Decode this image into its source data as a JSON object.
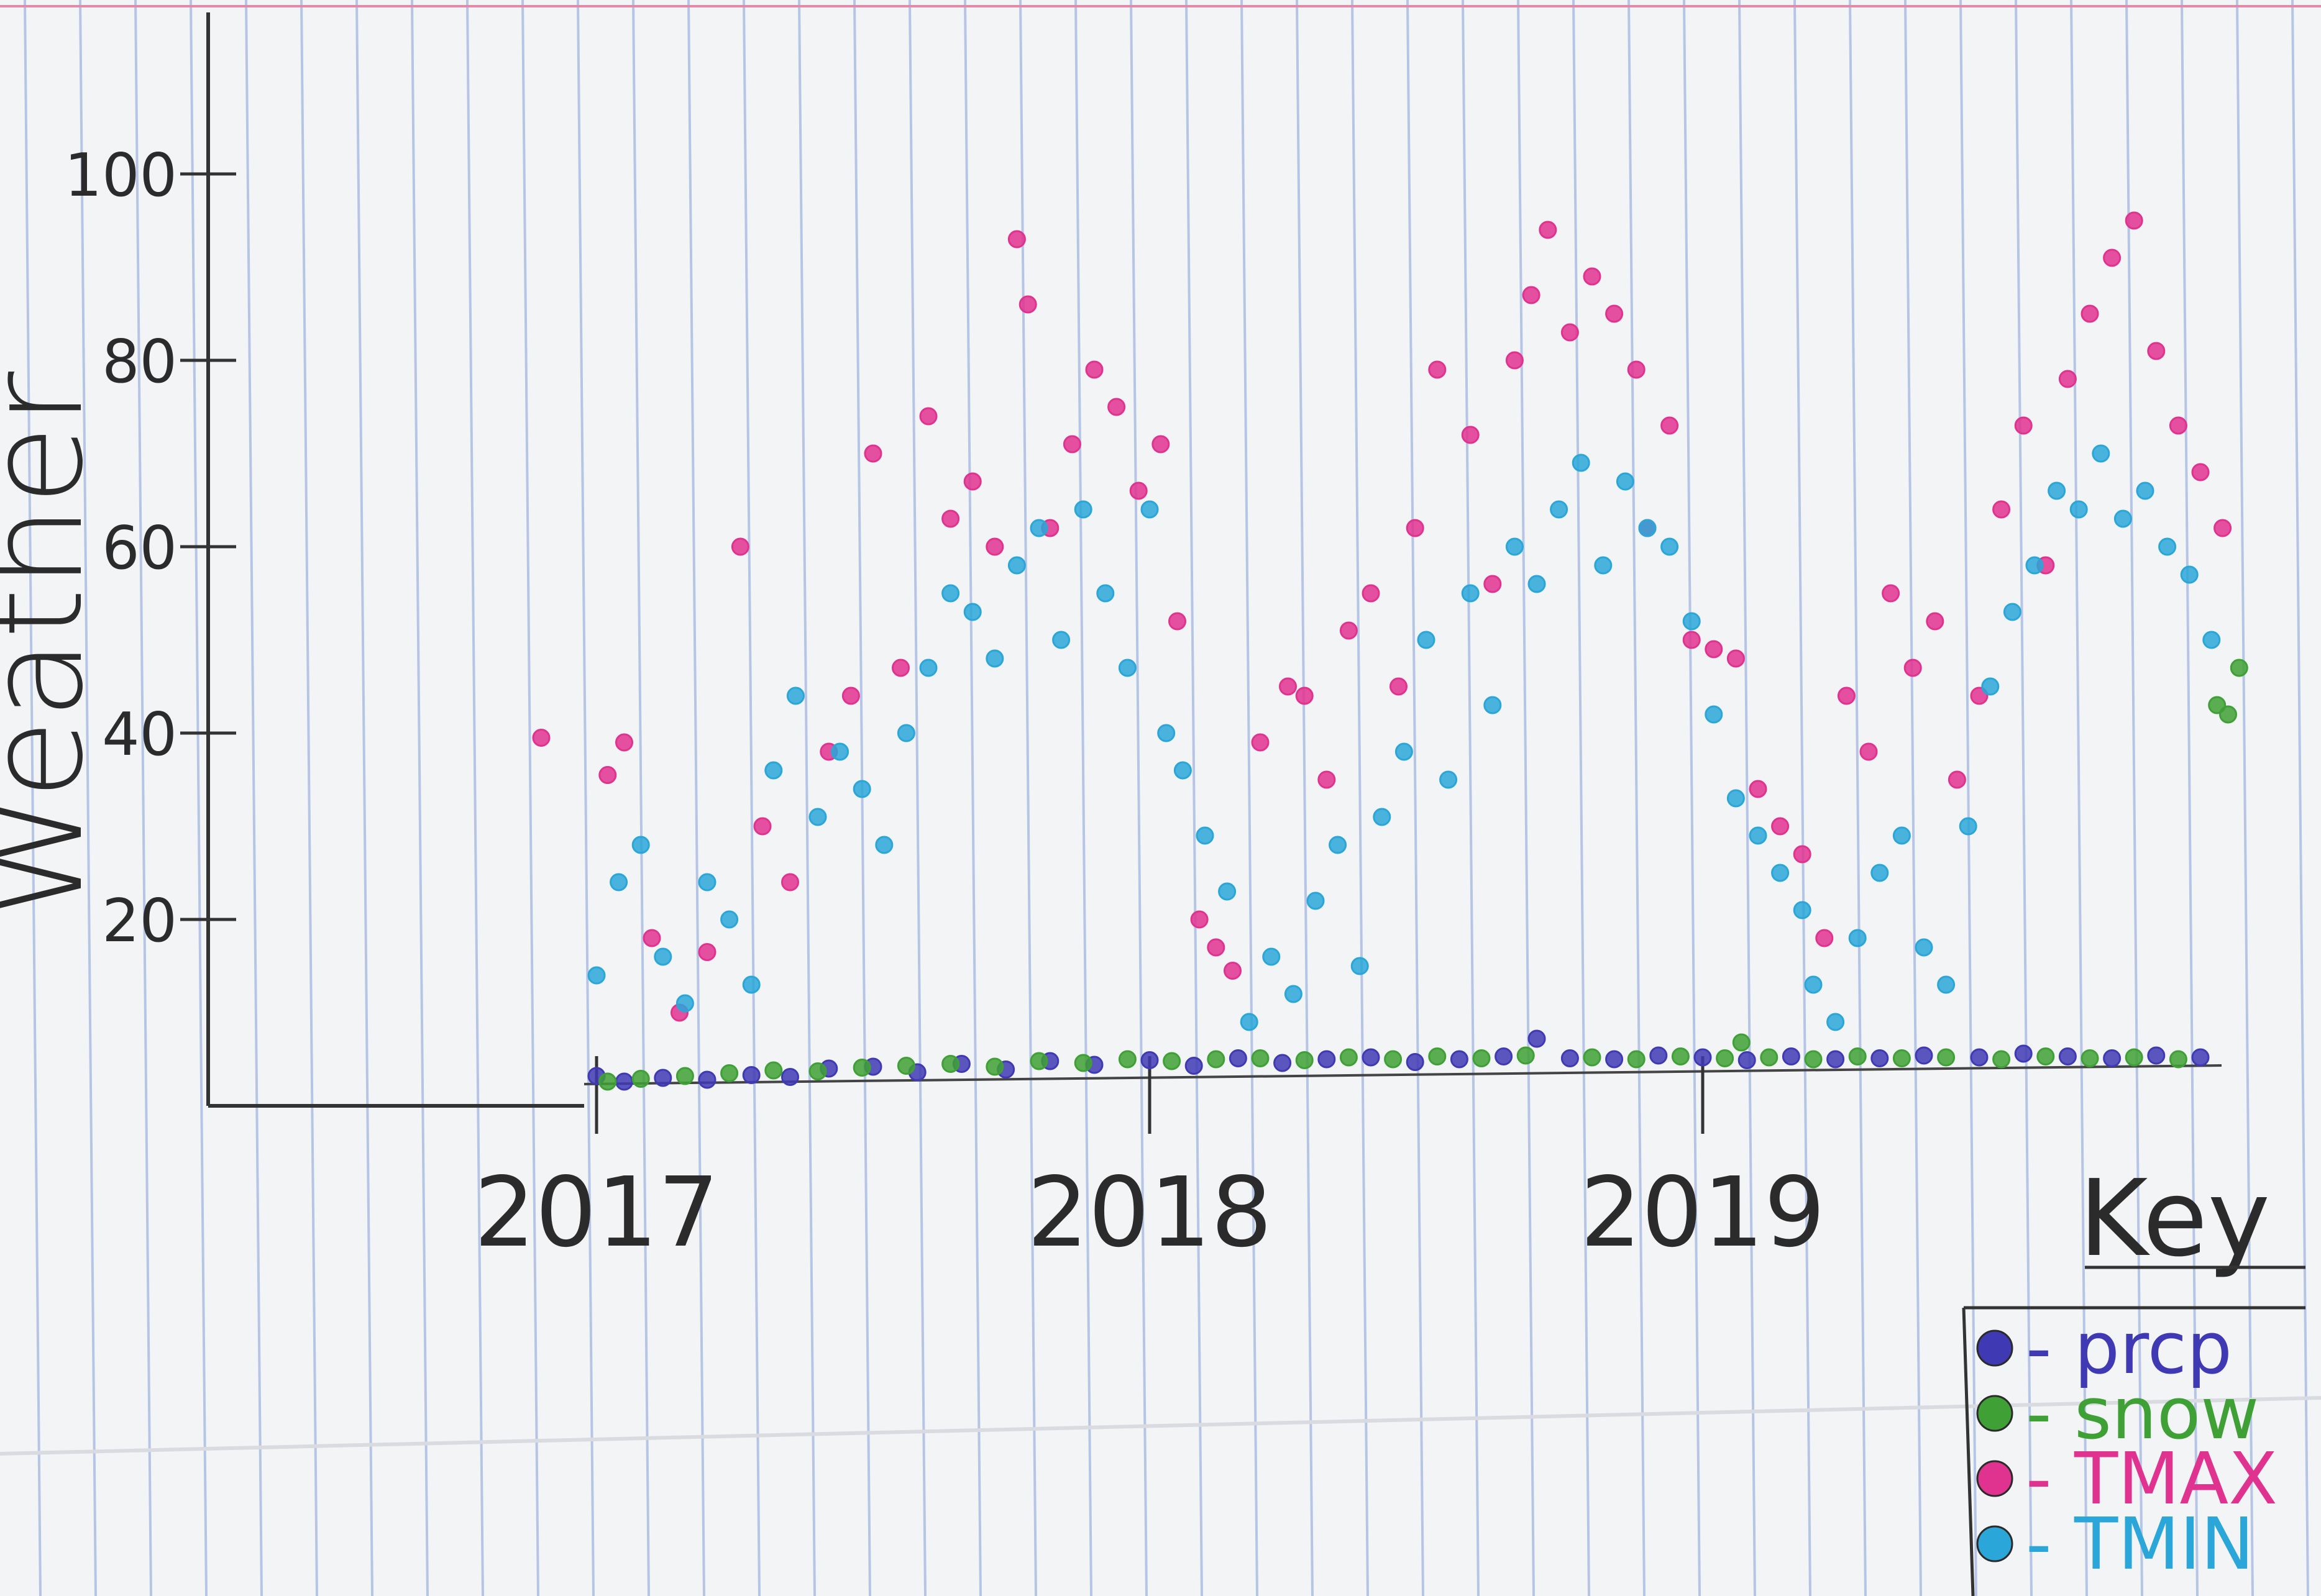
{
  "chart_data": {
    "type": "scatter",
    "ylabel": "Weather",
    "y_ticks": [
      "20",
      "40",
      "60",
      "80",
      "100"
    ],
    "x_ticks": [
      "2017",
      "2018",
      "2019"
    ],
    "ylim": [
      0,
      100
    ],
    "xlim": [
      2016.3,
      2020.0
    ],
    "grid": false,
    "legend_title": "Key",
    "legend_position": "bottom-right",
    "series": [
      {
        "name": "prcp",
        "color": "#3f3ab4",
        "points": [
          [
            2017.0,
            3.2
          ],
          [
            2017.05,
            2.6
          ],
          [
            2017.12,
            3.0
          ],
          [
            2017.2,
            2.8
          ],
          [
            2017.28,
            3.3
          ],
          [
            2017.35,
            3.1
          ],
          [
            2017.42,
            4.0
          ],
          [
            2017.5,
            4.2
          ],
          [
            2017.58,
            3.6
          ],
          [
            2017.66,
            4.5
          ],
          [
            2017.74,
            3.9
          ],
          [
            2017.82,
            4.8
          ],
          [
            2017.9,
            4.4
          ],
          [
            2018.0,
            4.9
          ],
          [
            2018.08,
            4.3
          ],
          [
            2018.16,
            5.1
          ],
          [
            2018.24,
            4.6
          ],
          [
            2018.32,
            5.0
          ],
          [
            2018.4,
            5.2
          ],
          [
            2018.48,
            4.7
          ],
          [
            2018.56,
            5.0
          ],
          [
            2018.64,
            5.3
          ],
          [
            2018.7,
            7.2
          ],
          [
            2018.76,
            5.1
          ],
          [
            2018.84,
            5.0
          ],
          [
            2018.92,
            5.4
          ],
          [
            2019.0,
            5.2
          ],
          [
            2019.08,
            4.9
          ],
          [
            2019.16,
            5.3
          ],
          [
            2019.24,
            5.0
          ],
          [
            2019.32,
            5.1
          ],
          [
            2019.4,
            5.4
          ],
          [
            2019.5,
            5.2
          ],
          [
            2019.58,
            5.6
          ],
          [
            2019.66,
            5.3
          ],
          [
            2019.74,
            5.1
          ],
          [
            2019.82,
            5.4
          ],
          [
            2019.9,
            5.2
          ]
        ]
      },
      {
        "name": "snow",
        "color": "#3fa035",
        "points": [
          [
            2017.02,
            2.6
          ],
          [
            2017.08,
            2.9
          ],
          [
            2017.16,
            3.2
          ],
          [
            2017.24,
            3.5
          ],
          [
            2017.32,
            3.8
          ],
          [
            2017.4,
            3.7
          ],
          [
            2017.48,
            4.1
          ],
          [
            2017.56,
            4.3
          ],
          [
            2017.64,
            4.5
          ],
          [
            2017.72,
            4.2
          ],
          [
            2017.8,
            4.8
          ],
          [
            2017.88,
            4.6
          ],
          [
            2017.96,
            5.0
          ],
          [
            2018.04,
            4.8
          ],
          [
            2018.12,
            5.0
          ],
          [
            2018.2,
            5.1
          ],
          [
            2018.28,
            4.9
          ],
          [
            2018.36,
            5.2
          ],
          [
            2018.44,
            5.0
          ],
          [
            2018.52,
            5.3
          ],
          [
            2018.6,
            5.1
          ],
          [
            2018.68,
            5.4
          ],
          [
            2018.8,
            5.2
          ],
          [
            2018.88,
            5.0
          ],
          [
            2018.96,
            5.3
          ],
          [
            2019.04,
            5.1
          ],
          [
            2019.07,
            6.8
          ],
          [
            2019.12,
            5.2
          ],
          [
            2019.2,
            5.0
          ],
          [
            2019.28,
            5.3
          ],
          [
            2019.36,
            5.1
          ],
          [
            2019.44,
            5.2
          ],
          [
            2019.54,
            5.0
          ],
          [
            2019.62,
            5.3
          ],
          [
            2019.7,
            5.1
          ],
          [
            2019.78,
            5.2
          ],
          [
            2019.86,
            5.0
          ],
          [
            2019.93,
            43.0
          ],
          [
            2019.95,
            42.0
          ],
          [
            2019.97,
            47.0
          ]
        ]
      },
      {
        "name": "TMAX",
        "color": "#e0338f",
        "points": [
          [
            2016.9,
            39.5
          ],
          [
            2017.02,
            35.5
          ],
          [
            2017.05,
            39.0
          ],
          [
            2017.1,
            18.0
          ],
          [
            2017.15,
            10.0
          ],
          [
            2017.2,
            16.5
          ],
          [
            2017.26,
            60.0
          ],
          [
            2017.3,
            30.0
          ],
          [
            2017.35,
            24.0
          ],
          [
            2017.42,
            38.0
          ],
          [
            2017.46,
            44.0
          ],
          [
            2017.5,
            70.0
          ],
          [
            2017.55,
            47.0
          ],
          [
            2017.6,
            74.0
          ],
          [
            2017.64,
            63.0
          ],
          [
            2017.68,
            67.0
          ],
          [
            2017.72,
            60.0
          ],
          [
            2017.76,
            93.0
          ],
          [
            2017.78,
            86.0
          ],
          [
            2017.82,
            62.0
          ],
          [
            2017.86,
            71.0
          ],
          [
            2017.9,
            79.0
          ],
          [
            2017.94,
            75.0
          ],
          [
            2017.98,
            66.0
          ],
          [
            2018.02,
            71.0
          ],
          [
            2018.05,
            52.0
          ],
          [
            2018.09,
            20.0
          ],
          [
            2018.12,
            17.0
          ],
          [
            2018.15,
            14.5
          ],
          [
            2018.2,
            39.0
          ],
          [
            2018.25,
            45.0
          ],
          [
            2018.28,
            44.0
          ],
          [
            2018.32,
            35.0
          ],
          [
            2018.36,
            51.0
          ],
          [
            2018.4,
            55.0
          ],
          [
            2018.45,
            45.0
          ],
          [
            2018.48,
            62.0
          ],
          [
            2018.52,
            79.0
          ],
          [
            2018.58,
            72.0
          ],
          [
            2018.62,
            56.0
          ],
          [
            2018.66,
            80.0
          ],
          [
            2018.69,
            87.0
          ],
          [
            2018.72,
            94.0
          ],
          [
            2018.76,
            83.0
          ],
          [
            2018.8,
            89.0
          ],
          [
            2018.84,
            85.0
          ],
          [
            2018.88,
            79.0
          ],
          [
            2018.9,
            62.0
          ],
          [
            2018.94,
            73.0
          ],
          [
            2018.98,
            50.0
          ],
          [
            2019.02,
            49.0
          ],
          [
            2019.06,
            48.0
          ],
          [
            2019.1,
            34.0
          ],
          [
            2019.14,
            30.0
          ],
          [
            2019.18,
            27.0
          ],
          [
            2019.22,
            18.0
          ],
          [
            2019.26,
            44.0
          ],
          [
            2019.3,
            38.0
          ],
          [
            2019.34,
            55.0
          ],
          [
            2019.38,
            47.0
          ],
          [
            2019.42,
            52.0
          ],
          [
            2019.46,
            35.0
          ],
          [
            2019.5,
            44.0
          ],
          [
            2019.54,
            64.0
          ],
          [
            2019.58,
            73.0
          ],
          [
            2019.62,
            58.0
          ],
          [
            2019.66,
            78.0
          ],
          [
            2019.7,
            85.0
          ],
          [
            2019.74,
            91.0
          ],
          [
            2019.78,
            95.0
          ],
          [
            2019.82,
            81.0
          ],
          [
            2019.86,
            73.0
          ],
          [
            2019.9,
            68.0
          ],
          [
            2019.94,
            62.0
          ]
        ]
      },
      {
        "name": "TMIN",
        "color": "#2aa6d8",
        "points": [
          [
            2017.0,
            14.0
          ],
          [
            2017.04,
            24.0
          ],
          [
            2017.08,
            28.0
          ],
          [
            2017.12,
            16.0
          ],
          [
            2017.16,
            11.0
          ],
          [
            2017.2,
            24.0
          ],
          [
            2017.24,
            20.0
          ],
          [
            2017.28,
            13.0
          ],
          [
            2017.32,
            36.0
          ],
          [
            2017.36,
            44.0
          ],
          [
            2017.4,
            31.0
          ],
          [
            2017.44,
            38.0
          ],
          [
            2017.48,
            34.0
          ],
          [
            2017.52,
            28.0
          ],
          [
            2017.56,
            40.0
          ],
          [
            2017.6,
            47.0
          ],
          [
            2017.64,
            55.0
          ],
          [
            2017.68,
            53.0
          ],
          [
            2017.72,
            48.0
          ],
          [
            2017.76,
            58.0
          ],
          [
            2017.8,
            62.0
          ],
          [
            2017.84,
            50.0
          ],
          [
            2017.88,
            64.0
          ],
          [
            2017.92,
            55.0
          ],
          [
            2017.96,
            47.0
          ],
          [
            2018.0,
            64.0
          ],
          [
            2018.03,
            40.0
          ],
          [
            2018.06,
            36.0
          ],
          [
            2018.1,
            29.0
          ],
          [
            2018.14,
            23.0
          ],
          [
            2018.18,
            9.0
          ],
          [
            2018.22,
            16.0
          ],
          [
            2018.26,
            12.0
          ],
          [
            2018.3,
            22.0
          ],
          [
            2018.34,
            28.0
          ],
          [
            2018.38,
            15.0
          ],
          [
            2018.42,
            31.0
          ],
          [
            2018.46,
            38.0
          ],
          [
            2018.5,
            50.0
          ],
          [
            2018.54,
            35.0
          ],
          [
            2018.58,
            55.0
          ],
          [
            2018.62,
            43.0
          ],
          [
            2018.66,
            60.0
          ],
          [
            2018.7,
            56.0
          ],
          [
            2018.74,
            64.0
          ],
          [
            2018.78,
            69.0
          ],
          [
            2018.82,
            58.0
          ],
          [
            2018.86,
            67.0
          ],
          [
            2018.9,
            62.0
          ],
          [
            2018.94,
            60.0
          ],
          [
            2018.98,
            52.0
          ],
          [
            2019.02,
            42.0
          ],
          [
            2019.06,
            33.0
          ],
          [
            2019.1,
            29.0
          ],
          [
            2019.14,
            25.0
          ],
          [
            2019.18,
            21.0
          ],
          [
            2019.2,
            13.0
          ],
          [
            2019.24,
            9.0
          ],
          [
            2019.28,
            18.0
          ],
          [
            2019.32,
            25.0
          ],
          [
            2019.36,
            29.0
          ],
          [
            2019.4,
            17.0
          ],
          [
            2019.44,
            13.0
          ],
          [
            2019.48,
            30.0
          ],
          [
            2019.52,
            45.0
          ],
          [
            2019.56,
            53.0
          ],
          [
            2019.6,
            58.0
          ],
          [
            2019.64,
            66.0
          ],
          [
            2019.68,
            64.0
          ],
          [
            2019.72,
            70.0
          ],
          [
            2019.76,
            63.0
          ],
          [
            2019.8,
            66.0
          ],
          [
            2019.84,
            60.0
          ],
          [
            2019.88,
            57.0
          ],
          [
            2019.92,
            50.0
          ]
        ]
      }
    ]
  }
}
